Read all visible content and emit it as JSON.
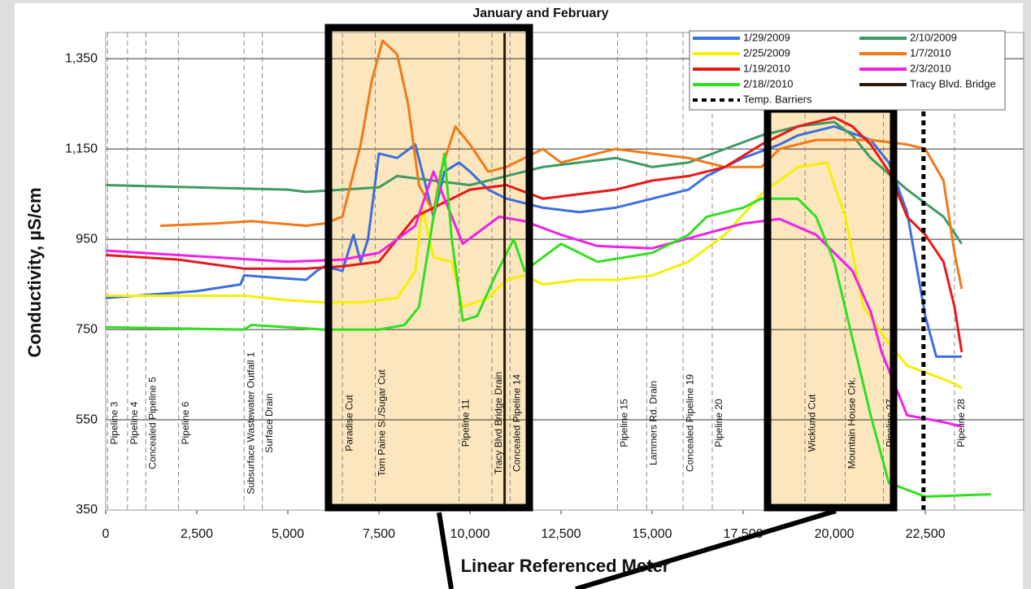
{
  "chart_data": {
    "type": "line",
    "title": "January and February",
    "x_label": "Linear Referenced Meter",
    "y_label": "Conductivity, µS/cm",
    "xlim": [
      0,
      25200
    ],
    "ylim": [
      350,
      1408
    ],
    "xticks": [
      0,
      {
        "value": 2500,
        "label": "2,500"
      },
      {
        "value": 5000,
        "label": "5,000"
      },
      {
        "value": 7500,
        "label": "7,500"
      },
      {
        "value": 10000,
        "label": "10,000"
      },
      {
        "value": 12500,
        "label": "12,500"
      },
      {
        "value": 15000,
        "label": "15,000"
      },
      {
        "value": 17500,
        "label": "17,500"
      },
      {
        "value": 20000,
        "label": "20,000"
      },
      {
        "value": 22500,
        "label": "22,500"
      }
    ],
    "yticks": [
      350,
      550,
      750,
      950,
      {
        "value": 1150,
        "label": "1,150"
      },
      {
        "value": 1350,
        "label": "1,350"
      }
    ],
    "grid": true,
    "legend": "upper right",
    "series": [
      {
        "name": "1/29/2009",
        "color": "#3b6fe0",
        "x": [
          0,
          2500,
          3700,
          3800,
          5500,
          5800,
          6000,
          6500,
          6800,
          7000,
          7200,
          7500,
          8000,
          8500,
          9000,
          9300,
          9700,
          10000,
          10500,
          11000,
          12000,
          13000,
          14000,
          15000,
          16000,
          16500,
          17500,
          18500,
          19000,
          20000,
          21000,
          21500,
          22000,
          22500,
          22800,
          23500
        ],
        "values": [
          820,
          835,
          850,
          870,
          860,
          880,
          890,
          880,
          960,
          900,
          950,
          1140,
          1130,
          1160,
          1000,
          1100,
          1120,
          1100,
          1060,
          1040,
          1020,
          1010,
          1020,
          1040,
          1060,
          1090,
          1130,
          1160,
          1180,
          1200,
          1170,
          1120,
          1010,
          780,
          690,
          690
        ]
      },
      {
        "name": "2/10/2009",
        "color": "#3f9a62",
        "x": [
          0,
          5000,
          5500,
          6500,
          7500,
          8000,
          9000,
          10000,
          11000,
          12000,
          13000,
          14000,
          15000,
          16000,
          17000,
          18000,
          19000,
          20000,
          20500,
          21000,
          22000,
          23000,
          23500
        ],
        "values": [
          1070,
          1060,
          1055,
          1060,
          1065,
          1090,
          1080,
          1070,
          1090,
          1110,
          1120,
          1130,
          1110,
          1120,
          1150,
          1180,
          1200,
          1210,
          1180,
          1130,
          1060,
          1000,
          940
        ]
      },
      {
        "name": "2/25/2009",
        "color": "#f5f000",
        "x": [
          0,
          3800,
          5000,
          6000,
          7000,
          8000,
          8500,
          8700,
          9000,
          9500,
          9800,
          10500,
          11000,
          11500,
          12000,
          13000,
          14000,
          15000,
          16000,
          17000,
          18000,
          19000,
          19800,
          20300,
          20800,
          21500,
          22000,
          23000,
          23300,
          23500
        ],
        "values": [
          825,
          825,
          815,
          810,
          810,
          820,
          880,
          1020,
          910,
          900,
          800,
          820,
          860,
          870,
          850,
          860,
          860,
          870,
          900,
          960,
          1050,
          1110,
          1120,
          1000,
          800,
          720,
          670,
          640,
          630,
          620
        ]
      },
      {
        "name": "1/7/2010",
        "color": "#f07a18",
        "x": [
          1500,
          3000,
          4000,
          5500,
          6000,
          6500,
          7000,
          7300,
          7600,
          8000,
          8300,
          8600,
          9000,
          9200,
          9600,
          10000,
          10500,
          11000,
          11500,
          12000,
          12500,
          14000,
          15000,
          16000,
          17000,
          18000,
          18500,
          19500,
          20000,
          21000,
          22000,
          22500,
          23000,
          23300,
          23500
        ],
        "values": [
          980,
          985,
          990,
          980,
          985,
          1000,
          1160,
          1300,
          1390,
          1360,
          1250,
          1070,
          1010,
          1100,
          1200,
          1160,
          1100,
          1110,
          1130,
          1150,
          1120,
          1150,
          1140,
          1130,
          1110,
          1110,
          1150,
          1170,
          1170,
          1170,
          1160,
          1150,
          1080,
          920,
          840
        ]
      },
      {
        "name": "1/19/2010",
        "color": "#e81818",
        "x": [
          0,
          2000,
          3800,
          5500,
          6500,
          7500,
          8000,
          8500,
          9000,
          9500,
          10000,
          11000,
          12000,
          13000,
          14000,
          15000,
          16000,
          17000,
          18000,
          19000,
          20000,
          20500,
          21000,
          21500,
          22000,
          22500,
          23000,
          23300,
          23500
        ],
        "values": [
          915,
          905,
          885,
          885,
          890,
          900,
          950,
          1000,
          1020,
          1040,
          1060,
          1070,
          1040,
          1050,
          1060,
          1080,
          1090,
          1110,
          1160,
          1200,
          1220,
          1200,
          1160,
          1100,
          1000,
          960,
          900,
          800,
          700
        ]
      },
      {
        "name": "2/3/2010",
        "color": "#f020e8",
        "x": [
          0,
          3000,
          5000,
          6500,
          7500,
          8500,
          9000,
          9300,
          9800,
          10300,
          10800,
          11500,
          12500,
          13500,
          15000,
          17500,
          18500,
          19500,
          20500,
          21000,
          21300,
          22000,
          23000,
          23500
        ],
        "values": [
          925,
          910,
          900,
          905,
          920,
          980,
          1100,
          1040,
          940,
          970,
          1000,
          990,
          960,
          935,
          930,
          985,
          995,
          960,
          880,
          790,
          700,
          560,
          545,
          535
        ]
      },
      {
        "name": "2/18//2010",
        "color": "#30e020",
        "x": [
          0,
          3800,
          4000,
          6000,
          7500,
          8200,
          8600,
          9000,
          9300,
          9500,
          9800,
          10200,
          10700,
          11200,
          11500,
          12500,
          13500,
          15000,
          16000,
          16500,
          17500,
          18000,
          19000,
          19500,
          20000,
          20500,
          21000,
          21500,
          22500,
          24300
        ],
        "values": [
          755,
          750,
          760,
          750,
          750,
          760,
          800,
          1000,
          1140,
          950,
          770,
          780,
          870,
          950,
          880,
          940,
          900,
          920,
          960,
          1000,
          1020,
          1040,
          1040,
          1000,
          900,
          730,
          560,
          410,
          380,
          385
        ]
      },
      {
        "name": "Tracy Blvd. Bridge",
        "color": "#2a1a0a",
        "x": [
          10950,
          10950
        ],
        "values": [
          350,
          1408
        ]
      },
      {
        "name": "Temp. Barriers",
        "color": "#000000",
        "linestyle": "dotted",
        "x": [
          22450,
          22450
        ],
        "values": [
          350,
          1240
        ]
      }
    ],
    "landmarks": [
      {
        "label": "Pipeline 3",
        "x": 50
      },
      {
        "label": "Pipeline 4",
        "x": 600
      },
      {
        "label": "Concealed Pipeline 5",
        "x": 1100
      },
      {
        "label": "Pipeline 6",
        "x": 2000
      },
      {
        "label": "Subsurface Wastewater Outfall 1",
        "x": 3800
      },
      {
        "label": "Surface Drain",
        "x": 4300
      },
      {
        "label": "Paradise Cut",
        "x": 6500
      },
      {
        "label": "Tom Paine Sl./Sugar Cut",
        "x": 7400
      },
      {
        "label": "Pipeline 11",
        "x": 9700
      },
      {
        "label": "Tracy Blvd Bridge Drain",
        "x": 10600
      },
      {
        "label": "Concealed Pipeline 14",
        "x": 11100
      },
      {
        "label": "Pipeline 15",
        "x": 14050
      },
      {
        "label": "Lammers Rd. Drain",
        "x": 14850
      },
      {
        "label": "Concealed Pipeline 19",
        "x": 15850
      },
      {
        "label": "Pipeline 20",
        "x": 16650
      },
      {
        "label": "Wicklund Cut",
        "x": 19200
      },
      {
        "label": "Mountain House Crk.",
        "x": 20300
      },
      {
        "label": "Pipeline 27",
        "x": 21350
      },
      {
        "label": "Pipeline 28",
        "x": 23300
      }
    ]
  }
}
